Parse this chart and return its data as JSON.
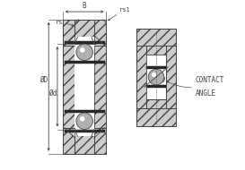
{
  "bg_color": "#ffffff",
  "line_color": "#444444",
  "hatch_color": "#cccccc",
  "ball_color": "#999999",
  "contact_angle_label_1": "CONTACT",
  "contact_angle_label_2": "ANGLE",
  "label_B": "B",
  "label_rs1": "rs1",
  "label_rs": "rs",
  "label_D": "ØD",
  "label_d": "Ød",
  "font_size": 5.5,
  "lw": 0.6
}
